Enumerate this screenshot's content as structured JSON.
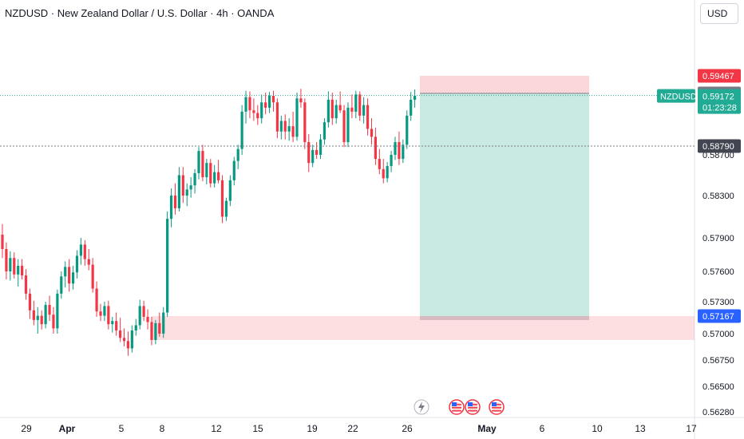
{
  "header": {
    "title": "NZDUSD · New Zealand Dollar / U.S. Dollar · 4h · OANDA",
    "currency_button": "USD"
  },
  "chart_data": {
    "type": "candlestick",
    "symbol": "NZDUSD",
    "timeframe": "4h",
    "y_ticks": [
      "0.58700",
      "0.58300",
      "0.57900",
      "0.57600",
      "0.57300",
      "0.57000",
      "0.56750",
      "0.56500",
      "0.56280"
    ],
    "x_ticks": [
      "29",
      "Apr",
      "5",
      "8",
      "12",
      "15",
      "19",
      "22",
      "26",
      "May",
      "6",
      "10",
      "13",
      "17"
    ],
    "price_tags": {
      "stop": {
        "value": "0.59467",
        "color": "#f23645"
      },
      "entry": {
        "value": "0.59188",
        "color": "#787b86"
      },
      "symbol_label": "NZDUSD",
      "last": {
        "value": "0.59172",
        "countdown": "01:23:28",
        "color": "#22ab94"
      },
      "crosshair": {
        "value": "0.58790",
        "color": "#434651"
      },
      "zone": {
        "value": "0.57167",
        "color": "#2962ff"
      }
    },
    "position": {
      "side": "short",
      "entry": 0.59188,
      "stop": 0.59467,
      "target": 0.57167
    },
    "demand_zone": {
      "top": 0.57167,
      "bottom": 0.5694
    },
    "candles": [
      [
        0.5793,
        0.5803,
        0.5772,
        0.578
      ],
      [
        0.578,
        0.5786,
        0.5752,
        0.576
      ],
      [
        0.576,
        0.5778,
        0.5751,
        0.5772
      ],
      [
        0.5772,
        0.5777,
        0.5753,
        0.5757
      ],
      [
        0.5757,
        0.5771,
        0.5745,
        0.5765
      ],
      [
        0.5765,
        0.5771,
        0.5752,
        0.5756
      ],
      [
        0.5756,
        0.5762,
        0.5732,
        0.5738
      ],
      [
        0.5738,
        0.5743,
        0.5714,
        0.5722
      ],
      [
        0.5722,
        0.5731,
        0.5708,
        0.5713
      ],
      [
        0.5713,
        0.5725,
        0.57,
        0.5717
      ],
      [
        0.5717,
        0.5722,
        0.5704,
        0.5709
      ],
      [
        0.5709,
        0.573,
        0.5705,
        0.5727
      ],
      [
        0.5727,
        0.5736,
        0.5712,
        0.5718
      ],
      [
        0.5718,
        0.5725,
        0.57,
        0.5705
      ],
      [
        0.5705,
        0.5742,
        0.57,
        0.5738
      ],
      [
        0.5738,
        0.576,
        0.5733,
        0.5755
      ],
      [
        0.5755,
        0.5769,
        0.5744,
        0.5764
      ],
      [
        0.5764,
        0.5771,
        0.574,
        0.5748
      ],
      [
        0.5748,
        0.5765,
        0.5742,
        0.5759
      ],
      [
        0.5759,
        0.5779,
        0.5753,
        0.5774
      ],
      [
        0.5774,
        0.579,
        0.5766,
        0.5784
      ],
      [
        0.5784,
        0.5788,
        0.5765,
        0.5771
      ],
      [
        0.5771,
        0.578,
        0.5761,
        0.5766
      ],
      [
        0.5766,
        0.5772,
        0.5739,
        0.5743
      ],
      [
        0.5743,
        0.575,
        0.5716,
        0.5721
      ],
      [
        0.5721,
        0.5728,
        0.5712,
        0.5717
      ],
      [
        0.5717,
        0.573,
        0.5712,
        0.5726
      ],
      [
        0.5726,
        0.5731,
        0.5704,
        0.5709
      ],
      [
        0.5709,
        0.5716,
        0.5701,
        0.5712
      ],
      [
        0.5712,
        0.572,
        0.5698,
        0.5703
      ],
      [
        0.5703,
        0.5715,
        0.5692,
        0.5696
      ],
      [
        0.5696,
        0.5705,
        0.5688,
        0.5693
      ],
      [
        0.5693,
        0.5702,
        0.5679,
        0.5686
      ],
      [
        0.5686,
        0.5708,
        0.5682,
        0.5703
      ],
      [
        0.5703,
        0.5714,
        0.5698,
        0.5708
      ],
      [
        0.5708,
        0.5732,
        0.5704,
        0.5726
      ],
      [
        0.5726,
        0.5731,
        0.5712,
        0.5716
      ],
      [
        0.5716,
        0.5723,
        0.5704,
        0.5711
      ],
      [
        0.5711,
        0.5716,
        0.5689,
        0.5694
      ],
      [
        0.5694,
        0.5713,
        0.569,
        0.571
      ],
      [
        0.571,
        0.572,
        0.5697,
        0.57
      ],
      [
        0.57,
        0.5725,
        0.5696,
        0.572
      ],
      [
        0.572,
        0.5815,
        0.5716,
        0.5808
      ],
      [
        0.5808,
        0.5837,
        0.58,
        0.583
      ],
      [
        0.583,
        0.5842,
        0.5812,
        0.5818
      ],
      [
        0.5818,
        0.5858,
        0.5815,
        0.585
      ],
      [
        0.585,
        0.5858,
        0.5823,
        0.583
      ],
      [
        0.583,
        0.5842,
        0.582,
        0.5836
      ],
      [
        0.5836,
        0.5848,
        0.5828,
        0.584
      ],
      [
        0.584,
        0.5856,
        0.5832,
        0.5852
      ],
      [
        0.5852,
        0.5878,
        0.5846,
        0.5874
      ],
      [
        0.5874,
        0.588,
        0.5844,
        0.5848
      ],
      [
        0.5848,
        0.5866,
        0.5841,
        0.5862
      ],
      [
        0.5862,
        0.5866,
        0.5838,
        0.5842
      ],
      [
        0.5842,
        0.586,
        0.5838,
        0.5853
      ],
      [
        0.5853,
        0.5865,
        0.5842,
        0.5845
      ],
      [
        0.5845,
        0.585,
        0.5804,
        0.581
      ],
      [
        0.581,
        0.5828,
        0.5806,
        0.5825
      ],
      [
        0.5825,
        0.585,
        0.582,
        0.5845
      ],
      [
        0.5845,
        0.5868,
        0.584,
        0.5864
      ],
      [
        0.5864,
        0.588,
        0.5856,
        0.5876
      ],
      [
        0.5876,
        0.591,
        0.587,
        0.5905
      ],
      [
        0.5905,
        0.5923,
        0.5896,
        0.5916
      ],
      [
        0.5916,
        0.5922,
        0.59,
        0.5906
      ],
      [
        0.5906,
        0.5915,
        0.5898,
        0.5904
      ],
      [
        0.5904,
        0.591,
        0.5895,
        0.59
      ],
      [
        0.59,
        0.5918,
        0.5896,
        0.5912
      ],
      [
        0.5912,
        0.592,
        0.5903,
        0.5908
      ],
      [
        0.5908,
        0.5921,
        0.5904,
        0.5917
      ],
      [
        0.5917,
        0.5923,
        0.5905,
        0.5912
      ],
      [
        0.5912,
        0.5915,
        0.5885,
        0.589
      ],
      [
        0.589,
        0.5902,
        0.5884,
        0.5898
      ],
      [
        0.5898,
        0.5903,
        0.5884,
        0.589
      ],
      [
        0.589,
        0.59,
        0.5883,
        0.5894
      ],
      [
        0.5894,
        0.5905,
        0.5882,
        0.5886
      ],
      [
        0.5886,
        0.592,
        0.5883,
        0.5915
      ],
      [
        0.5915,
        0.5926,
        0.5908,
        0.5912
      ],
      [
        0.5912,
        0.5915,
        0.5876,
        0.5882
      ],
      [
        0.5882,
        0.5888,
        0.5853,
        0.5862
      ],
      [
        0.5862,
        0.588,
        0.5858,
        0.5875
      ],
      [
        0.5875,
        0.5882,
        0.5866,
        0.587
      ],
      [
        0.587,
        0.5888,
        0.5866,
        0.5884
      ],
      [
        0.5884,
        0.59,
        0.588,
        0.5897
      ],
      [
        0.5897,
        0.5922,
        0.5893,
        0.5914
      ],
      [
        0.5914,
        0.592,
        0.5895,
        0.59
      ],
      [
        0.59,
        0.5914,
        0.5896,
        0.591
      ],
      [
        0.591,
        0.5922,
        0.5904,
        0.5906
      ],
      [
        0.5906,
        0.591,
        0.5878,
        0.5882
      ],
      [
        0.5882,
        0.5912,
        0.5878,
        0.5908
      ],
      [
        0.5908,
        0.5918,
        0.59,
        0.5905
      ],
      [
        0.5905,
        0.5923,
        0.59,
        0.5918
      ],
      [
        0.5918,
        0.5922,
        0.5898,
        0.5902
      ],
      [
        0.5902,
        0.5916,
        0.5896,
        0.591
      ],
      [
        0.591,
        0.5915,
        0.5887,
        0.5892
      ],
      [
        0.5892,
        0.59,
        0.588,
        0.5886
      ],
      [
        0.5886,
        0.5893,
        0.586,
        0.5866
      ],
      [
        0.5866,
        0.5876,
        0.5851,
        0.5856
      ],
      [
        0.5856,
        0.5866,
        0.5842,
        0.5847
      ],
      [
        0.5847,
        0.5863,
        0.5843,
        0.5859
      ],
      [
        0.5859,
        0.5874,
        0.5853,
        0.587
      ],
      [
        0.587,
        0.5886,
        0.5865,
        0.5882
      ],
      [
        0.5882,
        0.589,
        0.586,
        0.5866
      ],
      [
        0.5866,
        0.5884,
        0.5862,
        0.588
      ],
      [
        0.588,
        0.5906,
        0.5876,
        0.5902
      ],
      [
        0.5902,
        0.5921,
        0.5898,
        0.5914
      ],
      [
        0.5914,
        0.5925,
        0.5908,
        0.5917
      ]
    ]
  }
}
